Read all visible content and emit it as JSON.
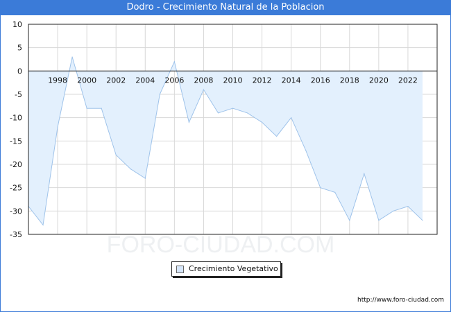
{
  "header": {
    "title": "Dodro - Crecimiento Natural de la Poblacion"
  },
  "footer": {
    "url": "http://www.foro-ciudad.com"
  },
  "watermark": "FORO-CIUDAD.COM",
  "colors": {
    "title_bg": "#3b7bd8",
    "fill": "#e3f0fd",
    "line": "#9fc3ea",
    "grid": "#d8d8d8",
    "zero_line": "#000000"
  },
  "chart_data": {
    "type": "area",
    "title": "Dodro - Crecimiento Natural de la Poblacion",
    "xlabel": "",
    "ylabel": "",
    "ylim": [
      -35,
      10
    ],
    "xlim": [
      1996,
      2024
    ],
    "grid": true,
    "legend_position": "bottom-center",
    "x_tick_labels": [
      "1998",
      "2000",
      "2002",
      "2004",
      "2006",
      "2008",
      "2010",
      "2012",
      "2014",
      "2016",
      "2018",
      "2020",
      "2022"
    ],
    "y_tick_labels": [
      "10",
      "5",
      "0",
      "-5",
      "-10",
      "-15",
      "-20",
      "-25",
      "-30",
      "-35"
    ],
    "series": [
      {
        "name": "Crecimiento Vegetativo",
        "x": [
          1996,
          1997,
          1998,
          1999,
          2000,
          2001,
          2002,
          2003,
          2004,
          2005,
          2006,
          2007,
          2008,
          2009,
          2010,
          2011,
          2012,
          2013,
          2014,
          2015,
          2016,
          2017,
          2018,
          2019,
          2020,
          2021,
          2022,
          2023
        ],
        "values": [
          -29,
          -33,
          -12,
          3,
          -8,
          -8,
          -18,
          -21,
          -23,
          -5,
          2,
          -11,
          -4,
          -9,
          -8,
          -9,
          -11,
          -14,
          -10,
          -17,
          -25,
          -26,
          -32,
          -22,
          -32,
          -30,
          -29,
          -32
        ]
      }
    ]
  }
}
